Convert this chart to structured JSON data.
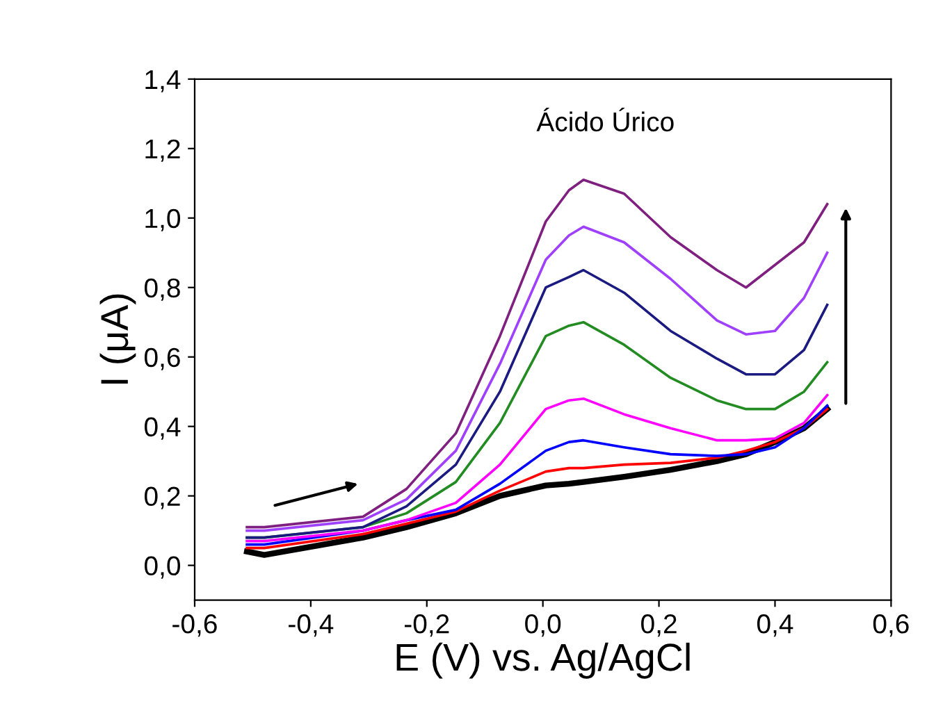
{
  "chart_data": {
    "type": "line",
    "xlabel": "E (V) vs. Ag/AgCl",
    "ylabel": "I (μA)",
    "annotations": [
      "Ácido Úrico"
    ],
    "x": [
      -0.51,
      -0.48,
      -0.31,
      -0.235,
      -0.15,
      -0.074,
      0.005,
      0.045,
      0.07,
      0.14,
      0.22,
      0.3,
      0.35,
      0.4,
      0.45,
      0.49
    ],
    "series": [
      {
        "color": "#000000",
        "values": [
          0.04,
          0.03,
          0.08,
          0.11,
          0.15,
          0.2,
          0.23,
          0.235,
          0.24,
          0.255,
          0.275,
          0.3,
          0.32,
          0.355,
          0.395,
          0.45
        ]
      },
      {
        "color": "#ff0000",
        "values": [
          0.05,
          0.05,
          0.09,
          0.12,
          0.155,
          0.215,
          0.27,
          0.28,
          0.28,
          0.29,
          0.295,
          0.31,
          0.33,
          0.355,
          0.395,
          0.45
        ]
      },
      {
        "color": "#0000ff",
        "values": [
          0.06,
          0.06,
          0.1,
          0.13,
          0.16,
          0.235,
          0.33,
          0.355,
          0.36,
          0.34,
          0.32,
          0.315,
          0.32,
          0.34,
          0.395,
          0.46
        ]
      },
      {
        "color": "#ff00ff",
        "values": [
          0.07,
          0.07,
          0.1,
          0.13,
          0.18,
          0.29,
          0.45,
          0.475,
          0.48,
          0.435,
          0.395,
          0.36,
          0.36,
          0.365,
          0.41,
          0.49
        ]
      },
      {
        "color": "#228b22",
        "values": [
          0.08,
          0.08,
          0.11,
          0.15,
          0.24,
          0.41,
          0.66,
          0.69,
          0.7,
          0.635,
          0.54,
          0.475,
          0.45,
          0.45,
          0.5,
          0.585
        ]
      },
      {
        "color": "#1a1a80",
        "values": [
          0.08,
          0.08,
          0.11,
          0.17,
          0.29,
          0.5,
          0.8,
          0.83,
          0.85,
          0.785,
          0.675,
          0.595,
          0.55,
          0.55,
          0.62,
          0.75
        ]
      },
      {
        "color": "#a040ff",
        "values": [
          0.1,
          0.1,
          0.13,
          0.19,
          0.33,
          0.58,
          0.88,
          0.95,
          0.975,
          0.93,
          0.825,
          0.705,
          0.665,
          0.675,
          0.77,
          0.9
        ]
      },
      {
        "color": "#7f1f7f",
        "values": [
          0.11,
          0.11,
          0.14,
          0.22,
          0.38,
          0.66,
          0.99,
          1.08,
          1.11,
          1.07,
          0.945,
          0.85,
          0.8,
          0.865,
          0.93,
          1.04
        ]
      }
    ],
    "xlim": [
      -0.6,
      0.6
    ],
    "ylim": [
      -0.1,
      1.4
    ],
    "xticks": [
      {
        "value": -0.6,
        "label": "-0,6"
      },
      {
        "value": -0.4,
        "label": "-0,4"
      },
      {
        "value": -0.2,
        "label": "-0,2"
      },
      {
        "value": 0.0,
        "label": "0,0"
      },
      {
        "value": 0.2,
        "label": "0,2"
      },
      {
        "value": 0.4,
        "label": "0,4"
      },
      {
        "value": 0.6,
        "label": "0,6"
      }
    ],
    "yticks": [
      {
        "value": 0.0,
        "label": "0,0"
      },
      {
        "value": 0.2,
        "label": "0,2"
      },
      {
        "value": 0.4,
        "label": "0,4"
      },
      {
        "value": 0.6,
        "label": "0,6"
      },
      {
        "value": 0.8,
        "label": "0,8"
      },
      {
        "value": 1.0,
        "label": "1,0"
      },
      {
        "value": 1.2,
        "label": "1,2"
      },
      {
        "value": 1.4,
        "label": "1,4"
      }
    ],
    "grid": false
  }
}
